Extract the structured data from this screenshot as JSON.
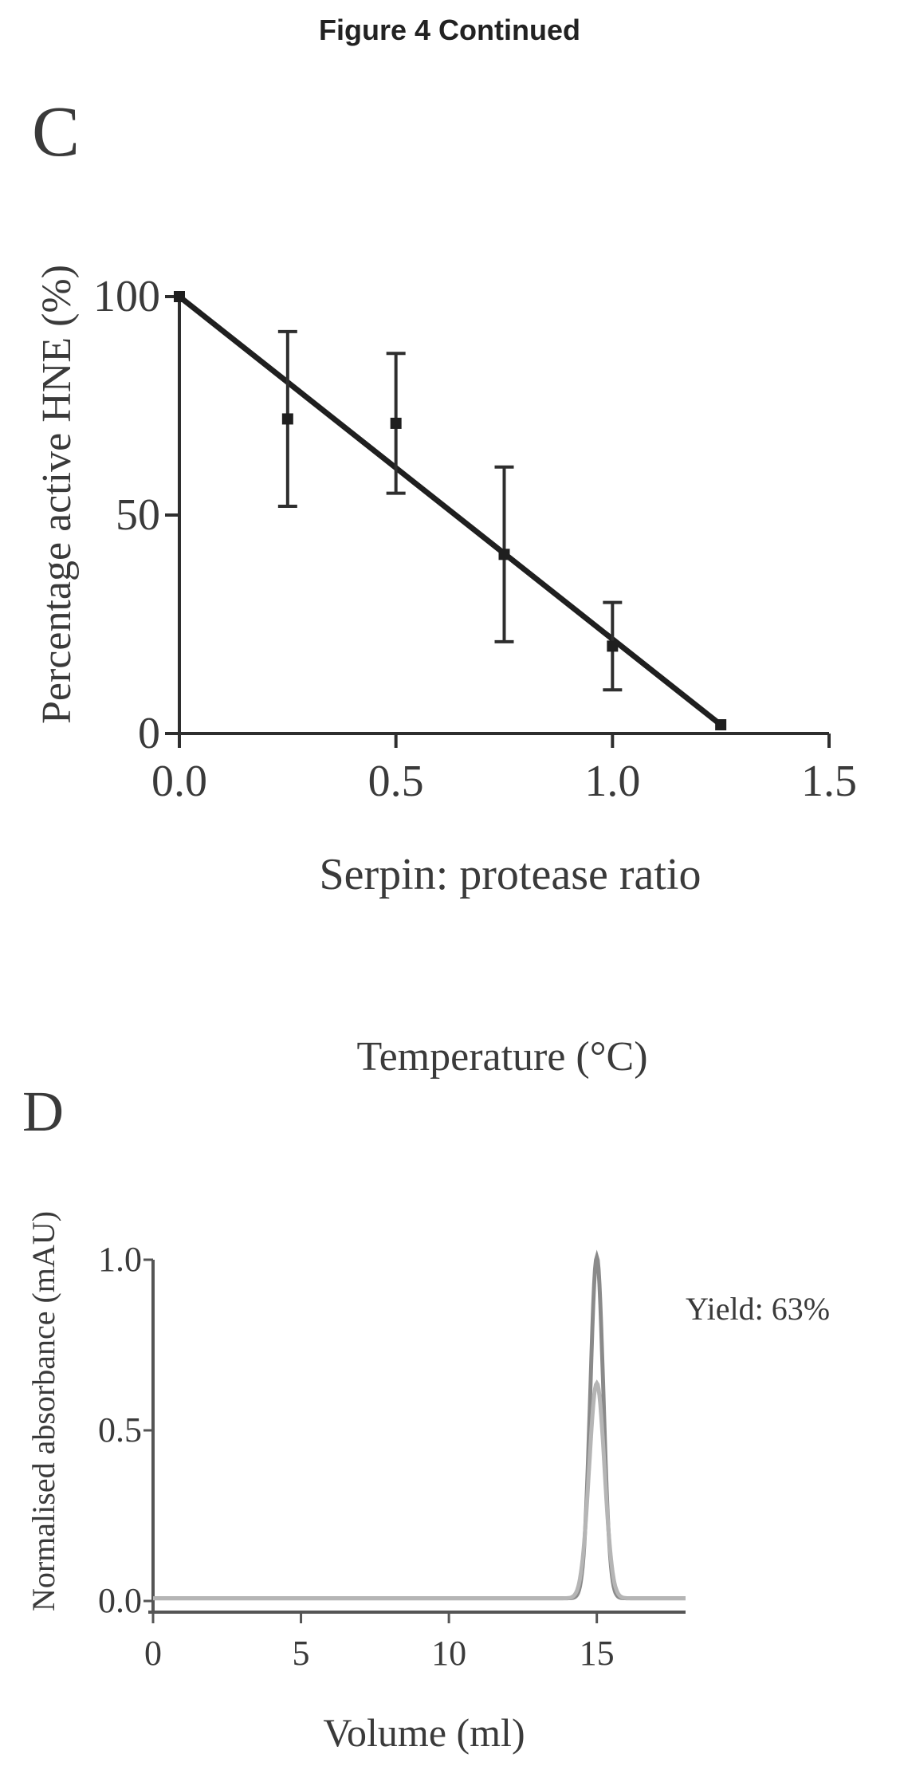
{
  "figure": {
    "title": "Figure 4 Continued"
  },
  "chart_data": [
    {
      "panel": "C",
      "type": "scatter",
      "xlabel": "Serpin: protease ratio",
      "ylabel": "Percentage active HNE (%)",
      "xlim": [
        0,
        1.5
      ],
      "ylim": [
        0,
        100
      ],
      "xticks": [
        "0.0",
        "0.5",
        "1.0",
        "1.5"
      ],
      "yticks": [
        "0",
        "50",
        "100"
      ],
      "grid": false,
      "points": [
        {
          "x": 0.0,
          "y": 100,
          "err": 0
        },
        {
          "x": 0.25,
          "y": 72,
          "err": 20
        },
        {
          "x": 0.5,
          "y": 71,
          "err": 16
        },
        {
          "x": 0.75,
          "y": 41,
          "err": 20
        },
        {
          "x": 1.0,
          "y": 20,
          "err": 10
        },
        {
          "x": 1.25,
          "y": 2,
          "err": 0
        }
      ],
      "fit_line": {
        "x": [
          0.0,
          1.25
        ],
        "y": [
          100,
          2
        ]
      }
    },
    {
      "panel": "D",
      "type": "line",
      "title": "Temperature (°C)",
      "xlabel": "Volume (ml)",
      "ylabel": "Normalised absorbance (mAU)",
      "xlim": [
        0,
        18
      ],
      "ylim": [
        0,
        1.0
      ],
      "xticks": [
        "0",
        "5",
        "10",
        "15"
      ],
      "yticks": [
        "0.0",
        "0.5",
        "1.0"
      ],
      "grid": false,
      "annotation": "Yield: 63%",
      "series": [
        {
          "color": "#8a8a8a",
          "peak_x": 15.0,
          "peak_y": 1.0,
          "width": 0.22
        },
        {
          "color": "#b5b5b5",
          "peak_x": 15.0,
          "peak_y": 0.63,
          "width": 0.26
        }
      ]
    }
  ]
}
